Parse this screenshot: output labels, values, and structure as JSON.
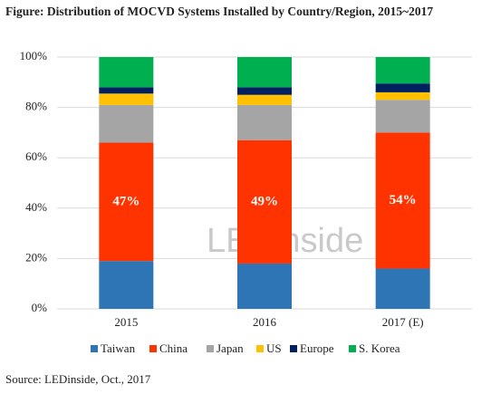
{
  "chart_data": {
    "type": "stacked-bar",
    "title": "Figure: Distribution of MOCVD Systems Installed by Country/Region, 2015~2017",
    "source": "Source: LEDinside, Oct., 2017",
    "watermark": "LEDinside",
    "categories": [
      "2015",
      "2016",
      "2017 (E)"
    ],
    "series": [
      {
        "name": "Taiwan",
        "color": "#2e75b6",
        "values": [
          19,
          18,
          16
        ]
      },
      {
        "name": "China",
        "color": "#ff3300",
        "values": [
          47,
          49,
          54
        ],
        "value_labels": [
          "47%",
          "49%",
          "54%"
        ]
      },
      {
        "name": "Japan",
        "color": "#a5a5a5",
        "values": [
          15,
          14,
          13
        ]
      },
      {
        "name": "US",
        "color": "#ffc000",
        "values": [
          4.5,
          4,
          3
        ]
      },
      {
        "name": "Europe",
        "color": "#002060",
        "values": [
          2.5,
          3,
          3.5
        ]
      },
      {
        "name": "S. Korea",
        "color": "#00b050",
        "values": [
          12,
          12,
          10.5
        ]
      }
    ],
    "ylim": [
      0,
      100
    ],
    "yticks": [
      {
        "value": 0,
        "label": "0%"
      },
      {
        "value": 20,
        "label": "20%"
      },
      {
        "value": 40,
        "label": "40%"
      },
      {
        "value": 60,
        "label": "60%"
      },
      {
        "value": 80,
        "label": "80%"
      },
      {
        "value": 100,
        "label": "100%"
      }
    ],
    "grid": true
  }
}
